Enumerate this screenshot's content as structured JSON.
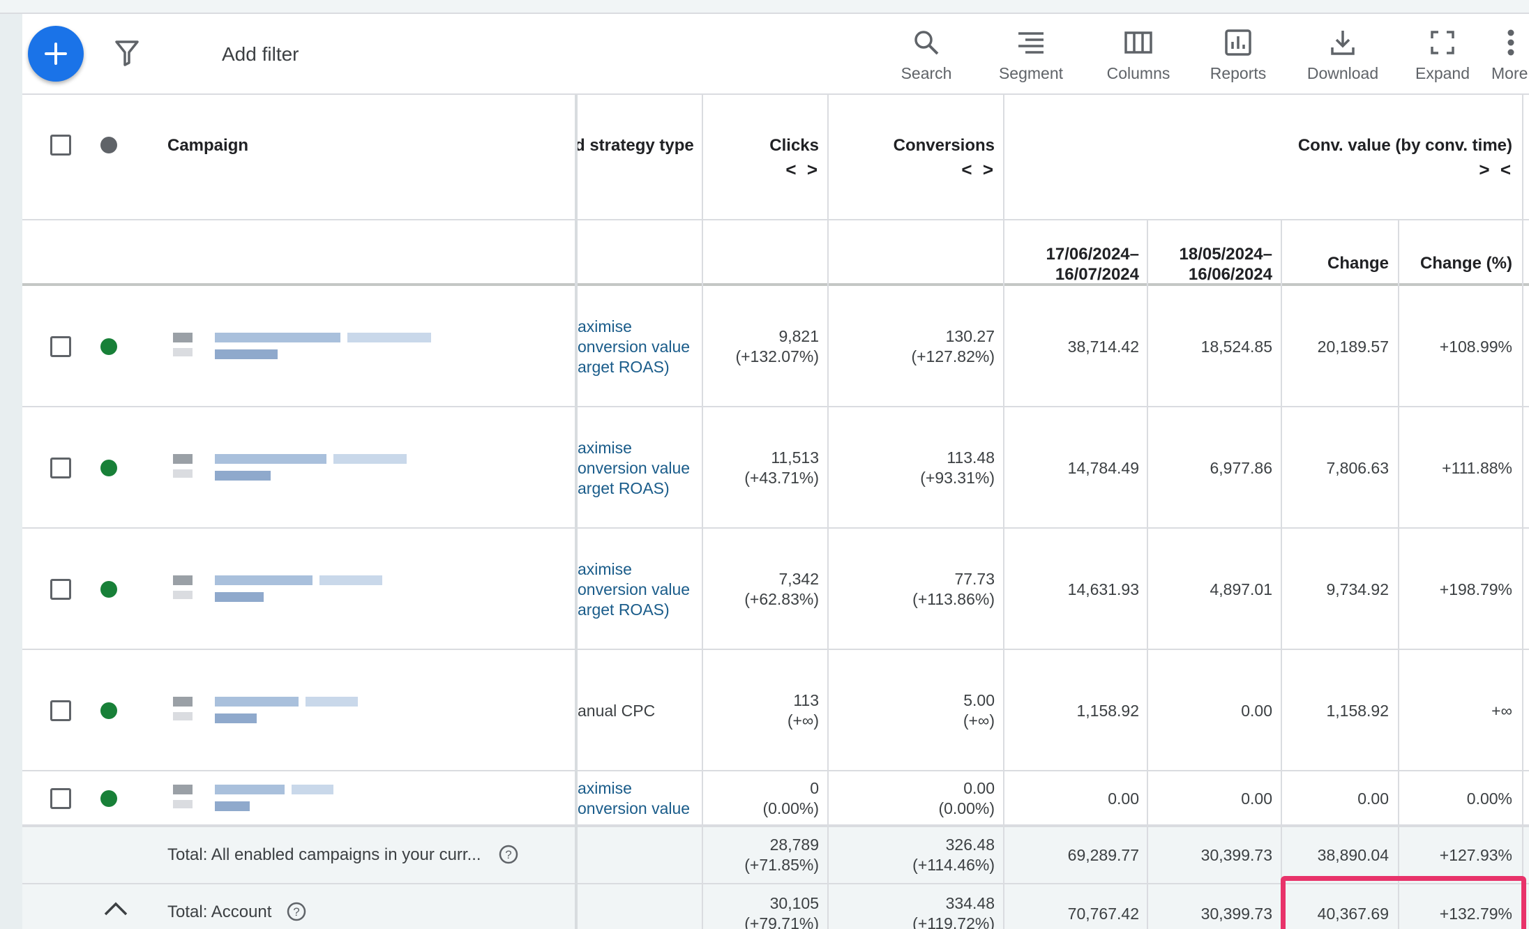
{
  "toolbar": {
    "add_filter": "Add filter",
    "tools": [
      {
        "label": "Search",
        "icon": "search-icon"
      },
      {
        "label": "Segment",
        "icon": "segment-icon"
      },
      {
        "label": "Columns",
        "icon": "columns-icon"
      },
      {
        "label": "Reports",
        "icon": "reports-icon"
      },
      {
        "label": "Download",
        "icon": "download-icon"
      },
      {
        "label": "Expand",
        "icon": "expand-icon"
      },
      {
        "label": "More",
        "icon": "more-vert-icon"
      }
    ]
  },
  "header": {
    "campaign": "Campaign",
    "bid_strategy": "d strategy type",
    "clicks": "Clicks",
    "conversions": "Conversions",
    "conv_value": "Conv. value (by conv. time)",
    "sort_expand": "< >",
    "sort_collapse": "> <",
    "period1": [
      "17/06/2024–",
      "16/07/2024"
    ],
    "period2": [
      "18/05/2024–",
      "16/06/2024"
    ],
    "change": "Change",
    "change_pct": "Change (%)"
  },
  "rows": [
    {
      "strategy": [
        "aximise",
        "onversion value",
        "arget ROAS)"
      ],
      "clicks": "9,821",
      "clicks_delta": "(+132.07%)",
      "conv": "130.27",
      "conv_delta": "(+127.82%)",
      "p1": "38,714.42",
      "p2": "18,524.85",
      "change": "20,189.57",
      "change_pct": "+108.99%"
    },
    {
      "strategy": [
        "aximise",
        "onversion value",
        "arget ROAS)"
      ],
      "clicks": "11,513",
      "clicks_delta": "(+43.71%)",
      "conv": "113.48",
      "conv_delta": "(+93.31%)",
      "p1": "14,784.49",
      "p2": "6,977.86",
      "change": "7,806.63",
      "change_pct": "+111.88%"
    },
    {
      "strategy": [
        "aximise",
        "onversion value",
        "arget ROAS)"
      ],
      "clicks": "7,342",
      "clicks_delta": "(+62.83%)",
      "conv": "77.73",
      "conv_delta": "(+113.86%)",
      "p1": "14,631.93",
      "p2": "4,897.01",
      "change": "9,734.92",
      "change_pct": "+198.79%"
    },
    {
      "strategy": [
        "anual CPC"
      ],
      "clicks": "113",
      "clicks_delta": "(+∞)",
      "conv": "5.00",
      "conv_delta": "(+∞)",
      "p1": "1,158.92",
      "p2": "0.00",
      "change": "1,158.92",
      "change_pct": "+∞"
    },
    {
      "strategy": [
        "aximise",
        "onversion value"
      ],
      "clicks": "0",
      "clicks_delta": "(0.00%)",
      "conv": "0.00",
      "conv_delta": "(0.00%)",
      "p1": "0.00",
      "p2": "0.00",
      "change": "0.00",
      "change_pct": "0.00%"
    }
  ],
  "totals": [
    {
      "label": "Total: All enabled campaigns in your curr...",
      "clicks": "28,789",
      "clicks_delta": "(+71.85%)",
      "conv": "326.48",
      "conv_delta": "(+114.46%)",
      "p1": "69,289.77",
      "p2": "30,399.73",
      "change": "38,890.04",
      "change_pct": "+127.93%"
    },
    {
      "label": "Total: Account",
      "clicks": "30,105",
      "clicks_delta": "(+79.71%)",
      "conv": "334.48",
      "conv_delta": "(+119.72%)",
      "p1": "70,767.42",
      "p2": "30,399.73",
      "change": "40,367.69",
      "change_pct": "+132.79%"
    }
  ],
  "colors": {
    "accent": "#1a73e8",
    "enabled": "#188038",
    "highlight": "#e8336a"
  }
}
